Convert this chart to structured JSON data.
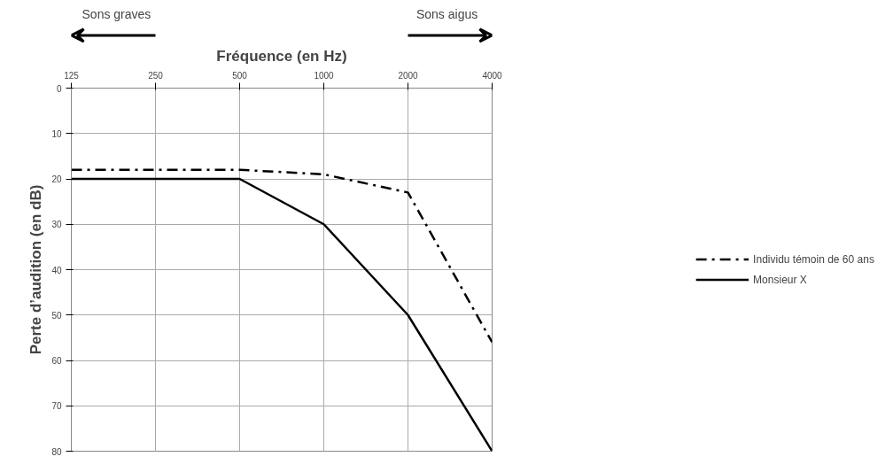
{
  "chart_data": {
    "type": "line",
    "xlabel": "Fréquence (en Hz)",
    "ylabel": "Perte d’audition (en dB)",
    "x": [
      125,
      250,
      500,
      1000,
      2000,
      4000
    ],
    "series": [
      {
        "name": "Individu témoin de 60 ans",
        "color": "#000000",
        "values": [
          18,
          18,
          18,
          19,
          23,
          56
        ],
        "line_style": "dashdot"
      },
      {
        "name": "Monsieur X",
        "color": "#000000",
        "values": [
          20,
          20,
          20,
          30,
          50,
          80
        ],
        "line_style": "solid"
      }
    ],
    "log": "x",
    "xlim": [
      125,
      4000
    ],
    "xticks": [
      125,
      250,
      500,
      1000,
      2000,
      4000
    ],
    "ylim": [
      80,
      0
    ],
    "yticks": [
      0,
      10,
      20,
      30,
      40,
      50,
      60,
      70,
      80
    ],
    "grid": true,
    "legend": "right",
    "marker": "none",
    "annotations": [
      "Sons graves",
      "Sons aigus"
    ]
  }
}
